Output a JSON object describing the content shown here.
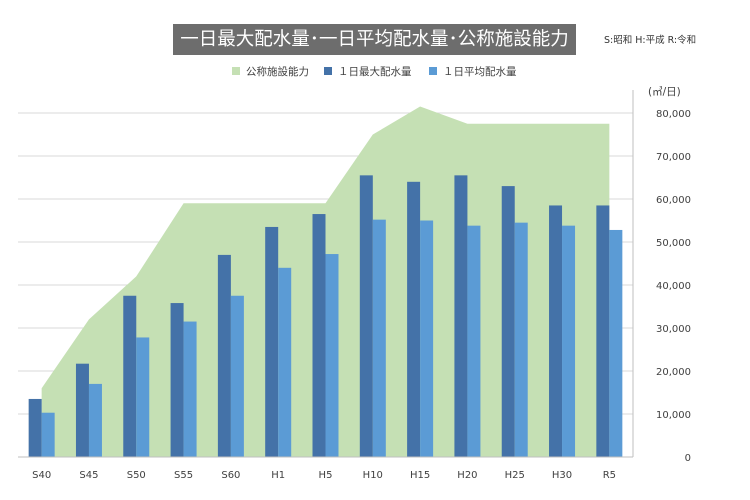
{
  "header": {
    "title": "一日最大配水量･一日平均配水量･公称施設能力",
    "era_note": "S:昭和 H:平成 R:令和"
  },
  "chart_data": {
    "type": "bar",
    "categories": [
      "S40",
      "S45",
      "S50",
      "S55",
      "S60",
      "H1",
      "H5",
      "H10",
      "H15",
      "H20",
      "H25",
      "H30",
      "R5"
    ],
    "series": [
      {
        "name": "公称施設能力",
        "kind": "area",
        "color": "#c5e0b4",
        "values": [
          16000,
          32000,
          42000,
          59000,
          59000,
          59000,
          59000,
          75000,
          81500,
          77500,
          77500,
          77500,
          77500
        ]
      },
      {
        "name": "１日最大配水量",
        "kind": "bar",
        "color": "#4472a8",
        "values": [
          13500,
          21700,
          37500,
          35800,
          47000,
          53500,
          56500,
          65500,
          64000,
          65500,
          63000,
          58500,
          58500
        ]
      },
      {
        "name": "１日平均配水量",
        "kind": "bar",
        "color": "#5b9bd5",
        "values": [
          10300,
          17000,
          27800,
          31500,
          37500,
          44000,
          47200,
          55200,
          55000,
          53800,
          54500,
          53800,
          52800
        ]
      }
    ],
    "ylabel": "(㎥/日)",
    "ylim": [
      0,
      80000
    ],
    "yticks": [
      "0",
      "10,000",
      "20,000",
      "30,000",
      "40,000",
      "50,000",
      "60,000",
      "70,000",
      "80,000"
    ],
    "grid": true,
    "legend_position": "top"
  }
}
